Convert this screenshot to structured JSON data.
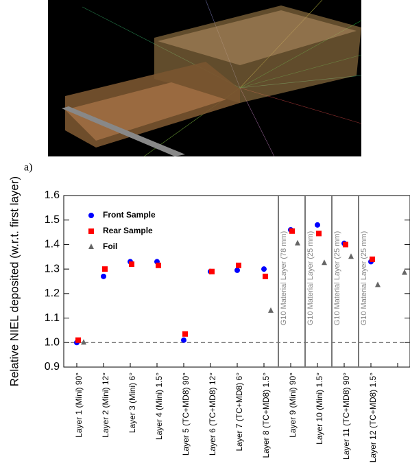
{
  "panel_label": "a)",
  "chart_data": {
    "type": "scatter",
    "y_label": "Relative NIEL deposited (w.r.t. first layer)",
    "categories": [
      "Layer 1 (Mini) 90°",
      "Layer 2 (Mini) 12°",
      "Layer 3 (Mini) 6°",
      "Layer 4 (Mini) 1.5°",
      "Layer 5 (TC+MD8) 90°",
      "Layer 6 (TC+MD8) 12°",
      "Layer 7 (TC+MD8) 6°",
      "Layer 8 (TC+MD8) 1.5°",
      "Layer 9 (Mini) 90°",
      "Layer 10 (Mini) 1.5°",
      "Layer 11 (TC+MD8) 90°",
      "Layer 12 (TC+MD8) 1.5°",
      null
    ],
    "series": [
      {
        "name": "Front Sample",
        "color": "#0000ff",
        "marker": "circle",
        "values": [
          1.0,
          1.27,
          1.33,
          1.33,
          1.01,
          1.29,
          1.295,
          1.3,
          1.46,
          1.48,
          1.405,
          1.33,
          null
        ]
      },
      {
        "name": "Rear Sample",
        "color": "#ff0000",
        "marker": "square",
        "values": [
          1.01,
          1.3,
          1.32,
          1.315,
          1.035,
          1.29,
          1.315,
          1.27,
          1.455,
          1.445,
          1.4,
          1.34,
          null
        ]
      },
      {
        "name": "Foil",
        "color": "#666666",
        "marker": "triangle",
        "values": [
          1.0,
          null,
          null,
          null,
          null,
          null,
          null,
          1.13,
          1.405,
          1.325,
          1.35,
          1.235,
          1.285
        ]
      }
    ],
    "ylim": [
      0.9,
      1.6
    ],
    "yticks": [
      0.9,
      {
        "value": 1.0,
        "label": "1.0"
      },
      1.1,
      1.2,
      1.3,
      1.4,
      1.5,
      1.6
    ],
    "reference_line": 1.0,
    "annotations": [
      "G10 Material Layer (78 mm)",
      "G10 Material Layer (25 mm)",
      "G10 Material Layer (25 mm)",
      "G10 Material Layer (25 mm)"
    ],
    "legend": "upper left"
  }
}
